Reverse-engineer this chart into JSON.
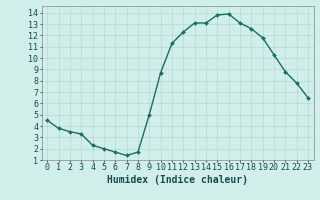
{
  "x": [
    0,
    1,
    2,
    3,
    4,
    5,
    6,
    7,
    8,
    9,
    10,
    11,
    12,
    13,
    14,
    15,
    16,
    17,
    18,
    19,
    20,
    21,
    22,
    23
  ],
  "y": [
    4.5,
    3.8,
    3.5,
    3.3,
    2.3,
    2.0,
    1.7,
    1.4,
    1.7,
    5.0,
    8.7,
    11.3,
    12.3,
    13.1,
    13.1,
    13.8,
    13.9,
    13.1,
    12.6,
    11.8,
    10.3,
    8.8,
    7.8,
    6.5
  ],
  "line_color": "#1a6e62",
  "marker": "D",
  "marker_size": 2.0,
  "line_width": 1.0,
  "bg_color": "#d0efeb",
  "grid_color": "#b8d8d4",
  "xlabel": "Humidex (Indice chaleur)",
  "xlabel_fontsize": 7,
  "tick_fontsize": 6,
  "xlim": [
    -0.5,
    23.5
  ],
  "ylim": [
    1,
    14.6
  ],
  "yticks": [
    1,
    2,
    3,
    4,
    5,
    6,
    7,
    8,
    9,
    10,
    11,
    12,
    13,
    14
  ],
  "xticks": [
    0,
    1,
    2,
    3,
    4,
    5,
    6,
    7,
    8,
    9,
    10,
    11,
    12,
    13,
    14,
    15,
    16,
    17,
    18,
    19,
    20,
    21,
    22,
    23
  ]
}
